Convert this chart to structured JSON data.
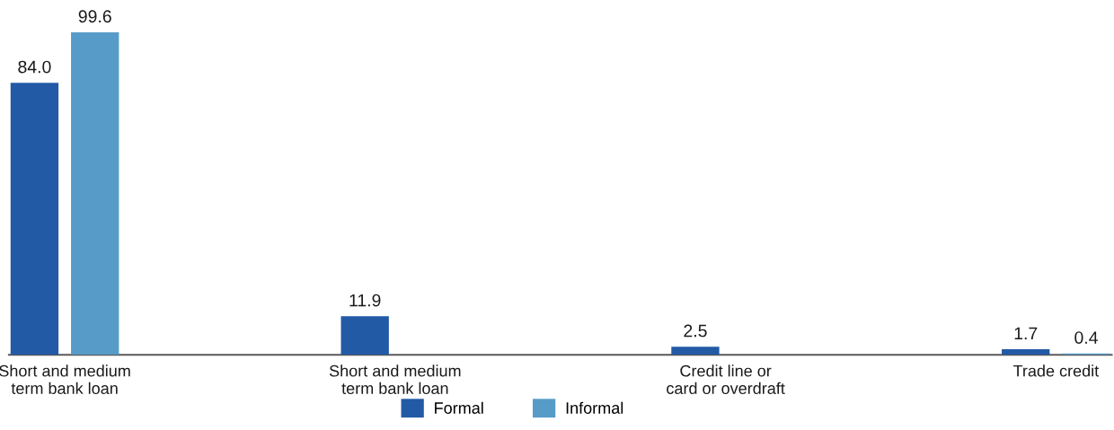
{
  "chart_data": {
    "type": "bar",
    "categories": [
      "Short and medium\nterm bank loan",
      "Short and medium\nterm bank loan",
      "Credit line or\ncard or overdraft",
      "Trade credit"
    ],
    "series": [
      {
        "name": "Formal",
        "color": "#235aa6",
        "values": [
          84.0,
          11.9,
          2.5,
          1.7
        ],
        "value_labels": [
          "84.0",
          "11.9",
          "2.5",
          "1.7"
        ]
      },
      {
        "name": "Informal",
        "color": "#579cc8",
        "values": [
          99.6,
          null,
          null,
          0.4
        ],
        "value_labels": [
          "99.6",
          null,
          null,
          "0.4"
        ]
      }
    ],
    "tick_labels": "x",
    "legend": "bottom"
  }
}
